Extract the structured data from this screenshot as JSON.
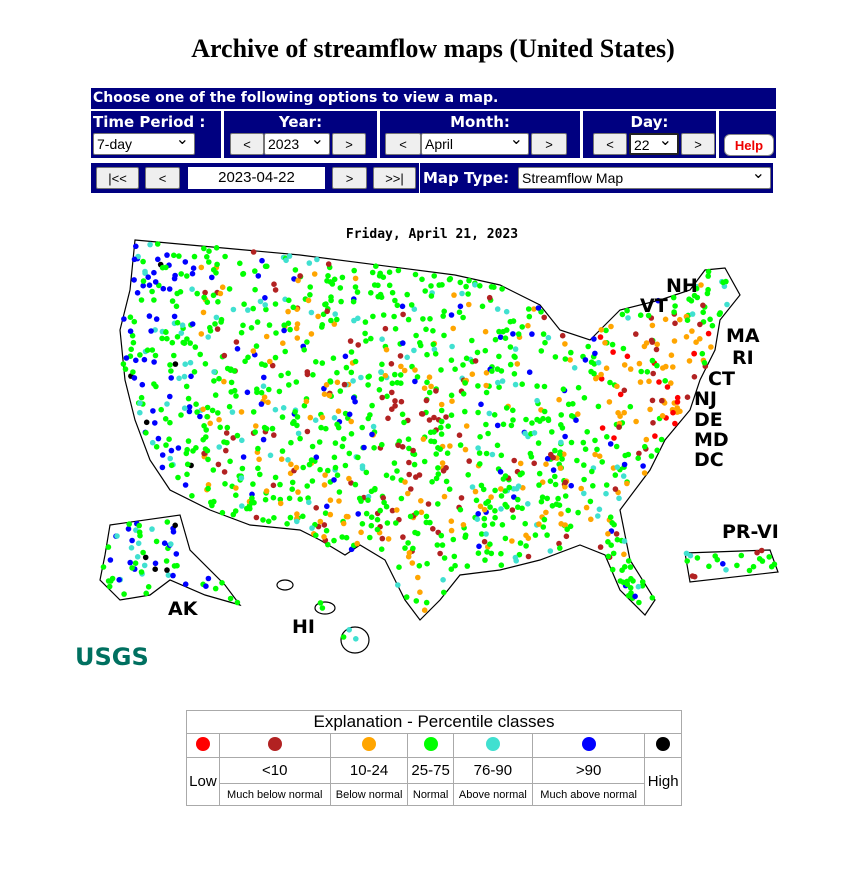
{
  "title": "Archive of streamflow maps (United States)",
  "controls": {
    "header": "Choose one of the following options to view a map.",
    "time_period_label": "Time Period :",
    "time_period": "7-day",
    "year_label": "Year:",
    "year": "2023",
    "month_label": "Month:",
    "month": "April",
    "day_label": "Day:",
    "day": "22",
    "help": "Help",
    "prev": "<",
    "next": ">",
    "first": "|<<",
    "last": ">>|",
    "date": "2023-04-22",
    "map_type_label": "Map Type:",
    "map_type": "Streamflow Map"
  },
  "map": {
    "date": "Friday, April 21, 2023",
    "labels": [
      "NH",
      "VT",
      "MA",
      "RI",
      "CT",
      "NJ",
      "DE",
      "MD",
      "DC",
      "PR-VI",
      "AK",
      "HI"
    ],
    "logo": "USGS"
  },
  "legend": {
    "title": "Explanation - Percentile classes",
    "classes": [
      {
        "label": "Low",
        "color": "#ff0000"
      },
      {
        "range": "<10",
        "label": "Much below normal",
        "color": "#b22222"
      },
      {
        "range": "10-24",
        "label": "Below normal",
        "color": "#ffa500"
      },
      {
        "range": "25-75",
        "label": "Normal",
        "color": "#00ff00"
      },
      {
        "range": "76-90",
        "label": "Above normal",
        "color": "#40e0d0"
      },
      {
        "range": ">90",
        "label": "Much above normal",
        "color": "#0000ff"
      },
      {
        "label": "High",
        "color": "#000000"
      }
    ]
  }
}
